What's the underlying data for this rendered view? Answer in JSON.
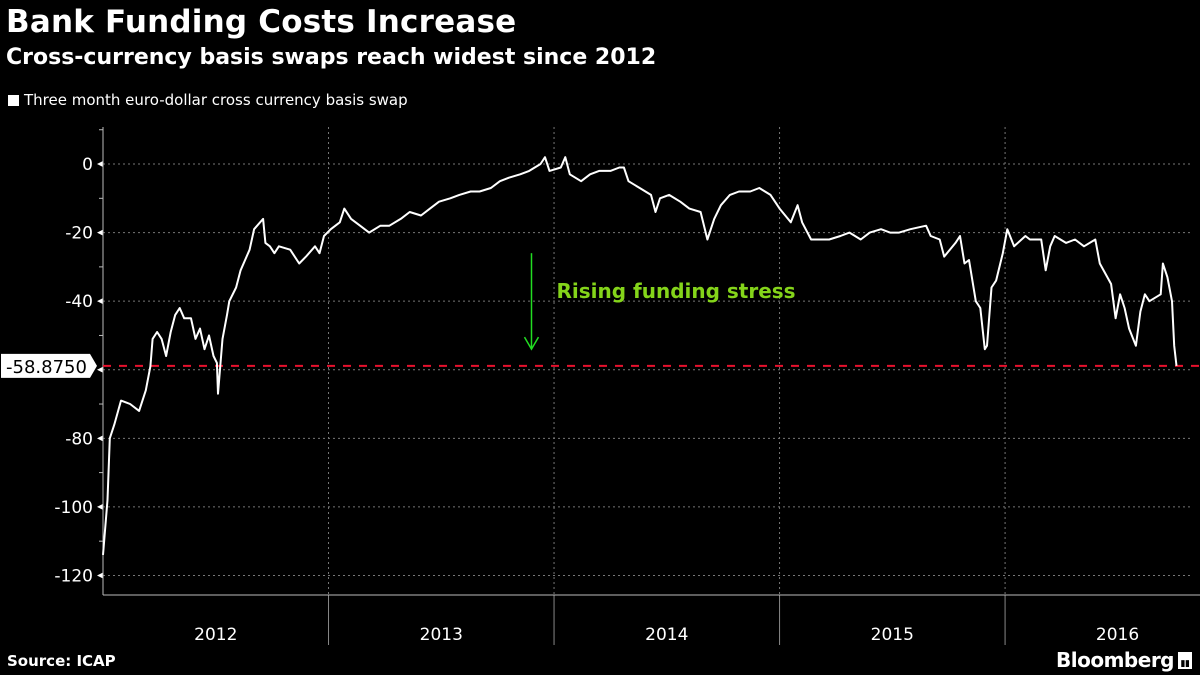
{
  "header": {
    "title": "Bank Funding Costs Increase",
    "subtitle": "Cross-currency basis swaps reach widest since 2012"
  },
  "footer": {
    "source": "Source: ICAP",
    "brand": "Bloomberg"
  },
  "colors": {
    "background": "#000000",
    "line": "#ffffff",
    "reference": "#e8112d",
    "annotation_text": "#84d41a",
    "annotation_arrow": "#22dd22"
  },
  "chart_data": {
    "type": "line",
    "title": "Bank Funding Costs Increase",
    "subtitle": "Cross-currency basis swaps reach widest since 2012",
    "xlabel": "",
    "ylabel": "",
    "xlim": [
      2012.0,
      2016.82
    ],
    "ylim": [
      -125.7,
      10.8
    ],
    "yticks": [
      0,
      -20,
      -40,
      -60,
      -80,
      -100,
      -120
    ],
    "ytick_labels": [
      "0",
      "-20",
      "-40",
      "",
      "-80",
      "-100",
      "-120"
    ],
    "xtick_labels": [
      {
        "label": "2012",
        "year": 2012
      },
      {
        "label": "2013",
        "year": 2013
      },
      {
        "label": "2014",
        "year": 2014
      },
      {
        "label": "2015",
        "year": 2015
      },
      {
        "label": "2016",
        "year": 2016
      }
    ],
    "grid": true,
    "legend": {
      "placement": "top-left",
      "entries": [
        "Three month euro-dollar cross currency basis swap"
      ]
    },
    "reference_line": {
      "value": -58.875,
      "label": "-58.8750"
    },
    "annotation": {
      "text": "Rising funding stress",
      "arrow_from": -26,
      "arrow_to": -54,
      "arrow_year": 2013.9
    },
    "series": [
      {
        "name": "Three month euro-dollar cross currency basis swap",
        "points": [
          [
            2012.0,
            -114
          ],
          [
            2012.02,
            -98
          ],
          [
            2012.03,
            -80
          ],
          [
            2012.05,
            -76
          ],
          [
            2012.08,
            -69
          ],
          [
            2012.12,
            -70
          ],
          [
            2012.16,
            -72
          ],
          [
            2012.19,
            -66
          ],
          [
            2012.21,
            -59
          ],
          [
            2012.22,
            -51
          ],
          [
            2012.24,
            -49
          ],
          [
            2012.26,
            -51
          ],
          [
            2012.28,
            -56
          ],
          [
            2012.3,
            -49
          ],
          [
            2012.32,
            -44
          ],
          [
            2012.34,
            -42
          ],
          [
            2012.36,
            -45
          ],
          [
            2012.39,
            -45
          ],
          [
            2012.41,
            -51
          ],
          [
            2012.43,
            -48
          ],
          [
            2012.45,
            -54
          ],
          [
            2012.47,
            -50
          ],
          [
            2012.49,
            -56
          ],
          [
            2012.505,
            -58
          ],
          [
            2012.51,
            -67
          ],
          [
            2012.53,
            -51
          ],
          [
            2012.55,
            -44
          ],
          [
            2012.56,
            -40
          ],
          [
            2012.59,
            -36
          ],
          [
            2012.61,
            -31
          ],
          [
            2012.63,
            -28
          ],
          [
            2012.65,
            -25
          ],
          [
            2012.67,
            -19
          ],
          [
            2012.71,
            -16
          ],
          [
            2012.72,
            -23
          ],
          [
            2012.74,
            -24
          ],
          [
            2012.76,
            -26
          ],
          [
            2012.78,
            -24
          ],
          [
            2012.83,
            -25
          ],
          [
            2012.87,
            -29
          ],
          [
            2012.9,
            -27
          ],
          [
            2012.94,
            -24
          ],
          [
            2012.96,
            -26
          ],
          [
            2012.98,
            -21
          ],
          [
            2013.01,
            -19
          ],
          [
            2013.05,
            -17
          ],
          [
            2013.07,
            -13
          ],
          [
            2013.1,
            -16
          ],
          [
            2013.14,
            -18
          ],
          [
            2013.18,
            -20
          ],
          [
            2013.23,
            -18
          ],
          [
            2013.27,
            -18
          ],
          [
            2013.32,
            -16
          ],
          [
            2013.36,
            -14
          ],
          [
            2013.41,
            -15
          ],
          [
            2013.45,
            -13
          ],
          [
            2013.49,
            -11
          ],
          [
            2013.54,
            -10
          ],
          [
            2013.58,
            -9
          ],
          [
            2013.63,
            -8
          ],
          [
            2013.67,
            -8
          ],
          [
            2013.72,
            -7
          ],
          [
            2013.76,
            -5
          ],
          [
            2013.8,
            -4
          ],
          [
            2013.85,
            -3
          ],
          [
            2013.89,
            -2
          ],
          [
            2013.94,
            0
          ],
          [
            2013.96,
            2
          ],
          [
            2013.98,
            -2
          ],
          [
            2014.03,
            -1
          ],
          [
            2014.05,
            2
          ],
          [
            2014.07,
            -3
          ],
          [
            2014.12,
            -5
          ],
          [
            2014.16,
            -3
          ],
          [
            2014.2,
            -2
          ],
          [
            2014.25,
            -2
          ],
          [
            2014.29,
            -1
          ],
          [
            2014.31,
            -1
          ],
          [
            2014.33,
            -5
          ],
          [
            2014.38,
            -7
          ],
          [
            2014.43,
            -9
          ],
          [
            2014.45,
            -14
          ],
          [
            2014.47,
            -10
          ],
          [
            2014.51,
            -9
          ],
          [
            2014.56,
            -11
          ],
          [
            2014.6,
            -13
          ],
          [
            2014.65,
            -14
          ],
          [
            2014.68,
            -22
          ],
          [
            2014.71,
            -16
          ],
          [
            2014.74,
            -12
          ],
          [
            2014.78,
            -9
          ],
          [
            2014.82,
            -8
          ],
          [
            2014.87,
            -8
          ],
          [
            2014.91,
            -7
          ],
          [
            2014.96,
            -9
          ],
          [
            2015.0,
            -13
          ],
          [
            2015.05,
            -17
          ],
          [
            2015.08,
            -12
          ],
          [
            2015.1,
            -17
          ],
          [
            2015.14,
            -22
          ],
          [
            2015.18,
            -22
          ],
          [
            2015.22,
            -22
          ],
          [
            2015.27,
            -21
          ],
          [
            2015.31,
            -20
          ],
          [
            2015.36,
            -22
          ],
          [
            2015.4,
            -20
          ],
          [
            2015.45,
            -19
          ],
          [
            2015.49,
            -20
          ],
          [
            2015.53,
            -20
          ],
          [
            2015.58,
            -19
          ],
          [
            2015.65,
            -18
          ],
          [
            2015.67,
            -21
          ],
          [
            2015.71,
            -22
          ],
          [
            2015.73,
            -27
          ],
          [
            2015.78,
            -23
          ],
          [
            2015.8,
            -21
          ],
          [
            2015.82,
            -29
          ],
          [
            2015.84,
            -28
          ],
          [
            2015.87,
            -40
          ],
          [
            2015.89,
            -42
          ],
          [
            2015.91,
            -54
          ],
          [
            2015.92,
            -53
          ],
          [
            2015.94,
            -36
          ],
          [
            2015.96,
            -34
          ],
          [
            2015.99,
            -26
          ],
          [
            2016.01,
            -19
          ],
          [
            2016.04,
            -24
          ],
          [
            2016.09,
            -21
          ],
          [
            2016.11,
            -22
          ],
          [
            2016.16,
            -22
          ],
          [
            2016.18,
            -31
          ],
          [
            2016.2,
            -24
          ],
          [
            2016.22,
            -21
          ],
          [
            2016.27,
            -23
          ],
          [
            2016.31,
            -22
          ],
          [
            2016.35,
            -24
          ],
          [
            2016.4,
            -22
          ],
          [
            2016.42,
            -29
          ],
          [
            2016.47,
            -35
          ],
          [
            2016.49,
            -45
          ],
          [
            2016.51,
            -38
          ],
          [
            2016.53,
            -42
          ],
          [
            2016.55,
            -48
          ],
          [
            2016.58,
            -53
          ],
          [
            2016.6,
            -43
          ],
          [
            2016.62,
            -38
          ],
          [
            2016.64,
            -40
          ],
          [
            2016.69,
            -38
          ],
          [
            2016.7,
            -29
          ],
          [
            2016.72,
            -33
          ],
          [
            2016.74,
            -40
          ],
          [
            2016.75,
            -53
          ],
          [
            2016.76,
            -58.875
          ]
        ]
      }
    ]
  }
}
